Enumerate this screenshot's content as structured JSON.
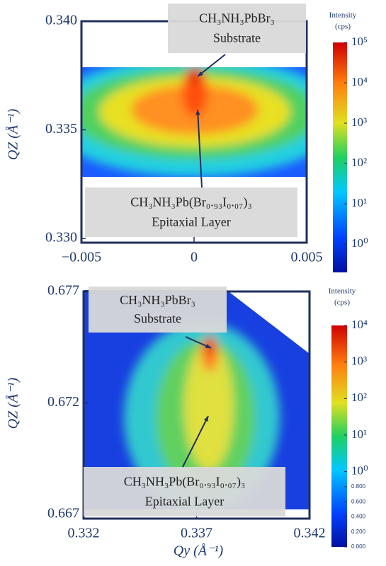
{
  "chart_data": [
    {
      "type": "heatmap",
      "ylabel": "QZ (Å⁻¹)",
      "xlim": [
        -0.005,
        0.005
      ],
      "xticks": [
        {
          "value": -0.005,
          "label": "−0.005"
        },
        0,
        0.005
      ],
      "ylim": [
        0.33,
        0.34
      ],
      "yticks": [
        {
          "value": 0.33,
          "label": "0.330"
        },
        0.335,
        {
          "value": 0.34,
          "label": "0.340"
        }
      ],
      "colorbar": {
        "title": [
          "Intensity",
          "(cps)"
        ],
        "log": true,
        "clim": [
          0.2,
          100000
        ],
        "ticks": [
          {
            "value": 1,
            "label": "10⁰"
          },
          {
            "value": 10,
            "label": "10¹"
          },
          {
            "value": 100,
            "label": "10²"
          },
          {
            "value": 1000,
            "label": "10³"
          },
          {
            "value": 10000,
            "label": "10⁴"
          },
          {
            "value": 100000,
            "label": "10⁵"
          }
        ]
      },
      "annotations": [
        {
          "text": [
            "CH₃NH₃PbBr₃",
            "Substrate"
          ]
        },
        {
          "text": [
            "CH₃NH₃Pb(Br₀.₉₃I₀.₀₇)₃",
            "Epitaxial Layer"
          ]
        }
      ]
    },
    {
      "type": "heatmap",
      "ylabel": "QZ (Å⁻¹)",
      "xlabel": "Qy (Å⁻¹)",
      "xlim": [
        0.332,
        0.342
      ],
      "xticks": [
        0.332,
        0.337,
        0.342
      ],
      "ylim": [
        0.667,
        0.677
      ],
      "yticks": [
        0.667,
        0.672,
        0.677
      ],
      "colorbar": {
        "title": [
          "Intensity",
          "(cps)"
        ],
        "log": true,
        "clim": [
          0,
          10000
        ],
        "ticks": [
          {
            "value": 0,
            "label": "0.000"
          },
          {
            "value": 0.2,
            "label": "0.200"
          },
          {
            "value": 0.4,
            "label": "0.400"
          },
          {
            "value": 0.6,
            "label": "0.600"
          },
          {
            "value": 0.8,
            "label": "0.800"
          },
          {
            "value": 1,
            "label": "10⁰"
          },
          {
            "value": 10,
            "label": "10¹"
          },
          {
            "value": 100,
            "label": "10²"
          },
          {
            "value": 1000,
            "label": "10³"
          },
          {
            "value": 10000,
            "label": "10⁴"
          }
        ]
      },
      "annotations": [
        {
          "text": [
            "CH₃NH₃PbBr₃",
            "Substrate"
          ]
        },
        {
          "text": [
            "CH₃NH₃Pb(Br₀.₉₃I₀.₀₇)₃",
            "Epitaxial Layer"
          ]
        }
      ]
    }
  ]
}
